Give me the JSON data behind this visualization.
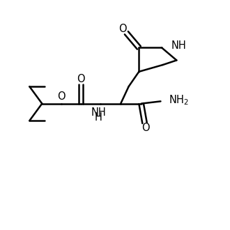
{
  "background_color": "#ffffff",
  "line_color": "#000000",
  "line_width": 1.8,
  "font_size": 10.5,
  "figsize": [
    3.3,
    3.3
  ],
  "dpi": 100,
  "xlim": [
    0,
    10
  ],
  "ylim": [
    0,
    10
  ]
}
